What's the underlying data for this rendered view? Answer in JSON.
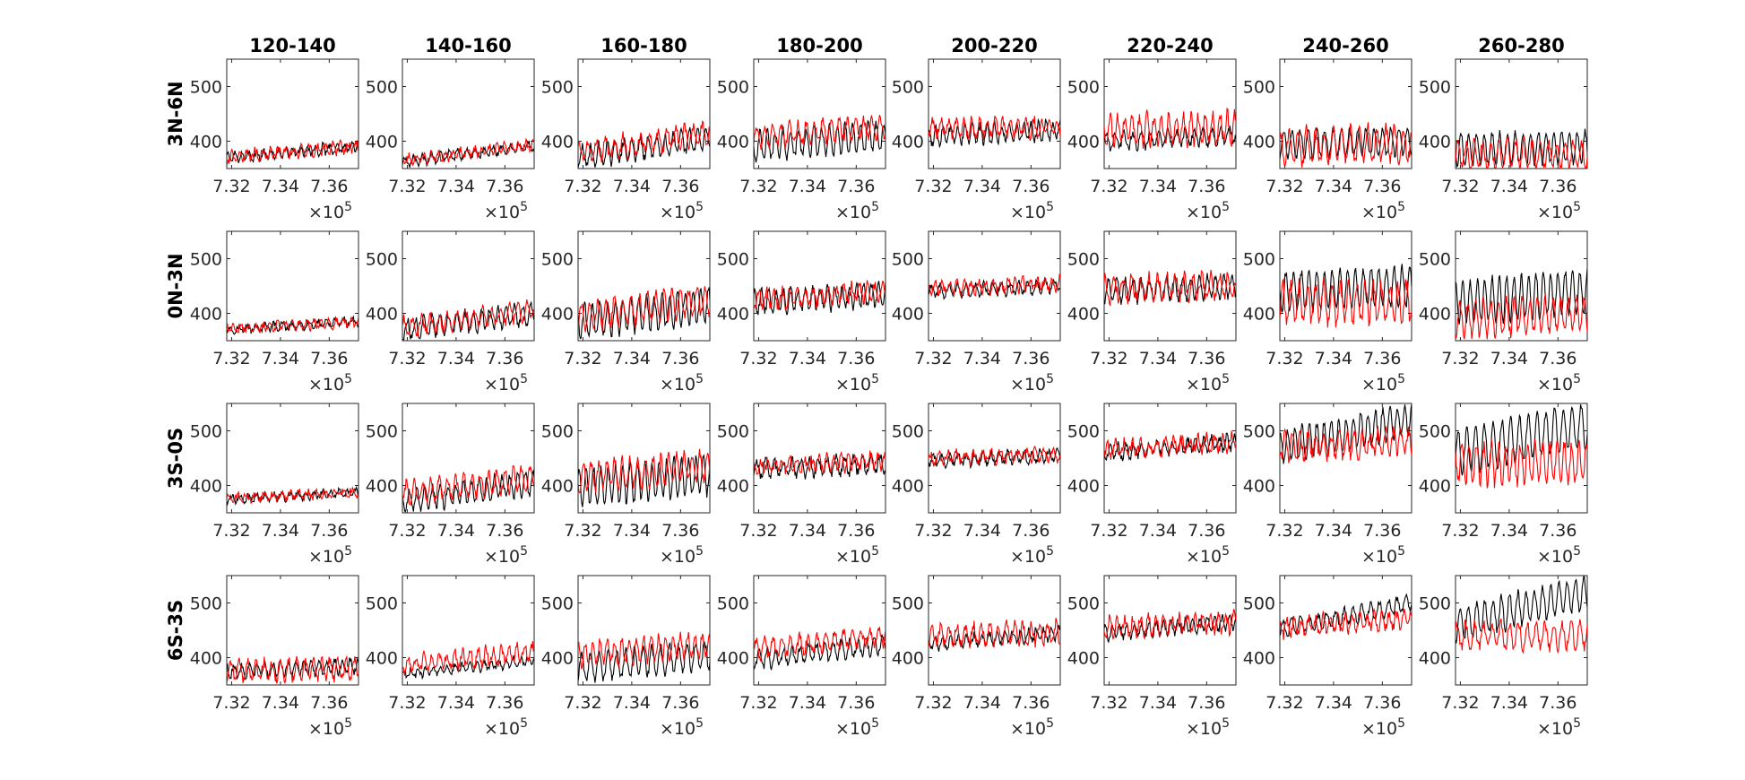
{
  "chart_data": {
    "type": "line",
    "layout": "small-multiples-grid",
    "column_titles": [
      "120-140",
      "140-160",
      "160-180",
      "180-200",
      "200-220",
      "220-240",
      "240-260",
      "260-280"
    ],
    "row_titles": [
      "3N-6N",
      "0N-3N",
      "3S-0S",
      "6S-3S"
    ],
    "x_ticks": [
      "7.32",
      "7.34",
      "7.36"
    ],
    "x_exponent": "×10",
    "x_exponent_power": "5",
    "y_ticks": [
      "400",
      "500"
    ],
    "xlim": [
      731800,
      737200
    ],
    "ylim": [
      350,
      550
    ],
    "grid": false,
    "series_colors": {
      "black": "#000000",
      "red": "#ff0000"
    },
    "panels": [
      [
        {
          "black": {
            "base": 370,
            "trend": 20,
            "amp": 8,
            "noise": 6
          },
          "red": {
            "base": 372,
            "trend": 18,
            "amp": 8,
            "noise": 7
          }
        },
        {
          "black": {
            "base": 362,
            "trend": 30,
            "amp": 8,
            "noise": 5
          },
          "red": {
            "base": 365,
            "trend": 28,
            "amp": 8,
            "noise": 6
          }
        },
        {
          "black": {
            "base": 370,
            "trend": 35,
            "amp": 20,
            "noise": 8
          },
          "red": {
            "base": 380,
            "trend": 35,
            "amp": 18,
            "noise": 9
          }
        },
        {
          "black": {
            "base": 390,
            "trend": 20,
            "amp": 25,
            "noise": 8
          },
          "red": {
            "base": 410,
            "trend": 15,
            "amp": 18,
            "noise": 9
          }
        },
        {
          "black": {
            "base": 410,
            "trend": 10,
            "amp": 15,
            "noise": 8
          },
          "red": {
            "base": 425,
            "trend": 0,
            "amp": 15,
            "noise": 9
          }
        },
        {
          "black": {
            "base": 400,
            "trend": 10,
            "amp": 15,
            "noise": 7
          },
          "red": {
            "base": 420,
            "trend": 5,
            "amp": 25,
            "noise": 12
          }
        },
        {
          "black": {
            "base": 395,
            "trend": 5,
            "amp": 25,
            "noise": 6
          },
          "red": {
            "base": 390,
            "trend": 5,
            "amp": 30,
            "noise": 12
          }
        },
        {
          "black": {
            "base": 385,
            "trend": 5,
            "amp": 28,
            "noise": 6
          },
          "red": {
            "base": 375,
            "trend": 0,
            "amp": 25,
            "noise": 10
          }
        }
      ],
      [
        {
          "black": {
            "base": 370,
            "trend": 15,
            "amp": 6,
            "noise": 5
          },
          "red": {
            "base": 372,
            "trend": 12,
            "amp": 6,
            "noise": 6
          }
        },
        {
          "black": {
            "base": 370,
            "trend": 30,
            "amp": 18,
            "noise": 7
          },
          "red": {
            "base": 375,
            "trend": 30,
            "amp": 15,
            "noise": 8
          }
        },
        {
          "black": {
            "base": 385,
            "trend": 30,
            "amp": 30,
            "noise": 8
          },
          "red": {
            "base": 395,
            "trend": 30,
            "amp": 25,
            "noise": 9
          }
        },
        {
          "black": {
            "base": 420,
            "trend": 15,
            "amp": 20,
            "noise": 8
          },
          "red": {
            "base": 425,
            "trend": 15,
            "amp": 15,
            "noise": 9
          }
        },
        {
          "black": {
            "base": 440,
            "trend": 10,
            "amp": 10,
            "noise": 6
          },
          "red": {
            "base": 445,
            "trend": 10,
            "amp": 10,
            "noise": 8
          }
        },
        {
          "black": {
            "base": 440,
            "trend": 10,
            "amp": 20,
            "noise": 7
          },
          "red": {
            "base": 445,
            "trend": 5,
            "amp": 20,
            "noise": 12
          }
        },
        {
          "black": {
            "base": 440,
            "trend": 10,
            "amp": 35,
            "noise": 7
          },
          "red": {
            "base": 420,
            "trend": 0,
            "amp": 35,
            "noise": 14
          }
        },
        {
          "black": {
            "base": 420,
            "trend": 20,
            "amp": 40,
            "noise": 7
          },
          "red": {
            "base": 390,
            "trend": 10,
            "amp": 30,
            "noise": 10
          }
        }
      ],
      [
        {
          "black": {
            "base": 375,
            "trend": 12,
            "amp": 6,
            "noise": 5
          },
          "red": {
            "base": 377,
            "trend": 10,
            "amp": 6,
            "noise": 6
          }
        },
        {
          "black": {
            "base": 370,
            "trend": 35,
            "amp": 20,
            "noise": 7
          },
          "red": {
            "base": 385,
            "trend": 30,
            "amp": 20,
            "noise": 8
          }
        },
        {
          "black": {
            "base": 395,
            "trend": 25,
            "amp": 35,
            "noise": 8
          },
          "red": {
            "base": 415,
            "trend": 20,
            "amp": 25,
            "noise": 9
          }
        },
        {
          "black": {
            "base": 430,
            "trend": 10,
            "amp": 15,
            "noise": 8
          },
          "red": {
            "base": 435,
            "trend": 10,
            "amp": 12,
            "noise": 9
          }
        },
        {
          "black": {
            "base": 445,
            "trend": 10,
            "amp": 10,
            "noise": 6
          },
          "red": {
            "base": 448,
            "trend": 10,
            "amp": 10,
            "noise": 8
          }
        },
        {
          "black": {
            "base": 460,
            "trend": 20,
            "amp": 12,
            "noise": 7
          },
          "red": {
            "base": 465,
            "trend": 15,
            "amp": 12,
            "noise": 10
          }
        },
        {
          "black": {
            "base": 470,
            "trend": 50,
            "amp": 30,
            "noise": 7
          },
          "red": {
            "base": 470,
            "trend": 10,
            "amp": 20,
            "noise": 12
          }
        },
        {
          "black": {
            "base": 460,
            "trend": 50,
            "amp": 40,
            "noise": 7
          },
          "red": {
            "base": 440,
            "trend": 0,
            "amp": 35,
            "noise": 12
          }
        }
      ],
      [
        {
          "black": {
            "base": 375,
            "trend": 10,
            "amp": 12,
            "noise": 6
          },
          "red": {
            "base": 375,
            "trend": 5,
            "amp": 18,
            "noise": 8
          }
        },
        {
          "black": {
            "base": 370,
            "trend": 25,
            "amp": 8,
            "noise": 5
          },
          "red": {
            "base": 385,
            "trend": 25,
            "amp": 15,
            "noise": 9
          }
        },
        {
          "black": {
            "base": 380,
            "trend": 25,
            "amp": 25,
            "noise": 7
          },
          "red": {
            "base": 405,
            "trend": 20,
            "amp": 20,
            "noise": 9
          }
        },
        {
          "black": {
            "base": 395,
            "trend": 30,
            "amp": 15,
            "noise": 7
          },
          "red": {
            "base": 415,
            "trend": 25,
            "amp": 15,
            "noise": 9
          }
        },
        {
          "black": {
            "base": 425,
            "trend": 20,
            "amp": 10,
            "noise": 6
          },
          "red": {
            "base": 440,
            "trend": 5,
            "amp": 18,
            "noise": 10
          }
        },
        {
          "black": {
            "base": 445,
            "trend": 20,
            "amp": 12,
            "noise": 6
          },
          "red": {
            "base": 455,
            "trend": 10,
            "amp": 15,
            "noise": 10
          }
        },
        {
          "black": {
            "base": 450,
            "trend": 50,
            "amp": 15,
            "noise": 6
          },
          "red": {
            "base": 455,
            "trend": 15,
            "amp": 15,
            "noise": 10
          }
        },
        {
          "black": {
            "base": 460,
            "trend": 60,
            "amp": 30,
            "noise": 7
          },
          "red": {
            "base": 440,
            "trend": 0,
            "amp": 22,
            "noise": 10
          }
        }
      ]
    ]
  }
}
